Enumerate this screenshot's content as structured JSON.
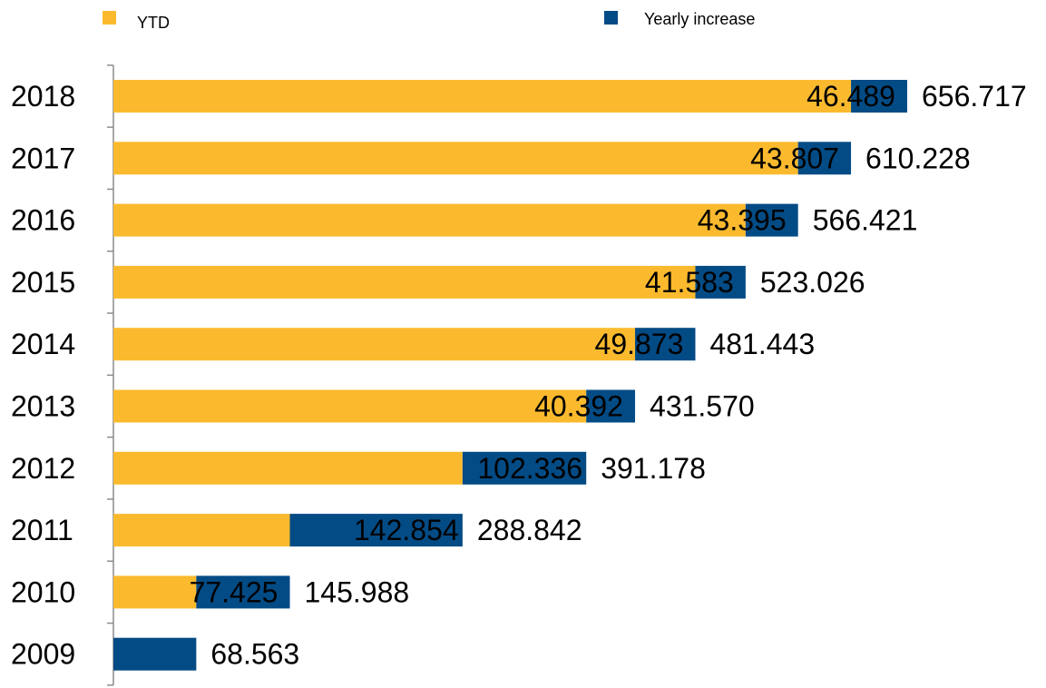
{
  "chart_data": {
    "type": "bar",
    "orientation": "horizontal",
    "stacked": true,
    "categories": [
      "2018",
      "2017",
      "2016",
      "2015",
      "2014",
      "2013",
      "2012",
      "2011",
      "2010",
      "2009"
    ],
    "series": [
      {
        "name": "YTD",
        "color": "#FBBA2E",
        "values": [
          610.228,
          566.421,
          523.026,
          481.443,
          431.57,
          391.178,
          288.842,
          145.988,
          68.563,
          0
        ]
      },
      {
        "name": "Yearly increase",
        "color": "#034B85",
        "values": [
          46.489,
          43.807,
          43.395,
          41.583,
          49.873,
          40.392,
          102.336,
          142.854,
          77.425,
          68.563
        ],
        "labels": [
          "46.489",
          "43.807",
          "43.395",
          "41.583",
          "49.873",
          "40.392",
          "102.336",
          "142.854",
          "77.425",
          ""
        ]
      }
    ],
    "totals": [
      "656.717",
      "610.228",
      "566.421",
      "523.026",
      "481.443",
      "431.570",
      "391.178",
      "288.842",
      "145.988",
      "68.563"
    ],
    "xlim": [
      0,
      656.717
    ],
    "grid": false,
    "legend_position": "top"
  }
}
